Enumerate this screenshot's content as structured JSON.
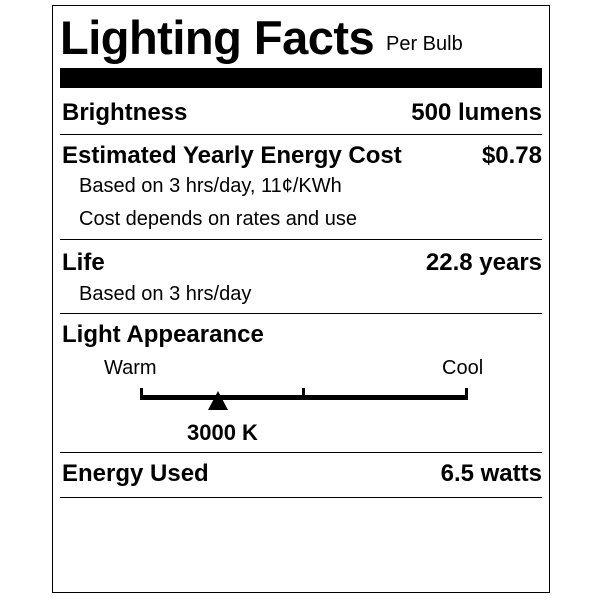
{
  "header": {
    "title": "Lighting Facts",
    "subtitle": "Per Bulb"
  },
  "brightness": {
    "label": "Brightness",
    "value": "500 lumens"
  },
  "energy_cost": {
    "label": "Estimated Yearly Energy Cost",
    "value": "$0.78",
    "note1": "Based on 3 hrs/day, 11¢/KWh",
    "note2": "Cost depends on rates and use"
  },
  "life": {
    "label": "Life",
    "value": "22.8 years",
    "note": "Based on 3 hrs/day"
  },
  "appearance": {
    "label": "Light Appearance",
    "warm": "Warm",
    "cool": "Cool",
    "value": "3000 K",
    "marker_icon": "triangle-up"
  },
  "energy_used": {
    "label": "Energy Used",
    "value": "6.5 watts"
  }
}
